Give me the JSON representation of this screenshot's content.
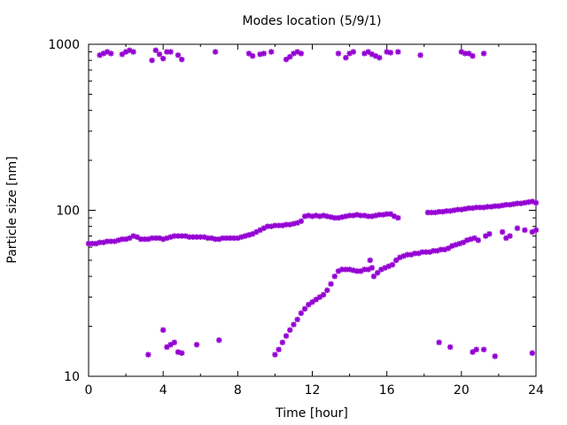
{
  "chart_data": {
    "type": "scatter",
    "title": "Modes location (5/9/1)",
    "xlabel": "Time [hour]",
    "ylabel": "Particle size [nm]",
    "xlim": [
      0,
      24
    ],
    "ylim": [
      10,
      1000
    ],
    "yscale": "log",
    "grid": false,
    "legend": "none",
    "marker": "asterisk",
    "color": "#9400d3",
    "xticks": [
      0,
      4,
      8,
      12,
      16,
      20,
      24
    ],
    "xtick_labels": [
      "0",
      "4",
      "8",
      "12",
      "16",
      "20",
      "24"
    ],
    "yticks": [
      10,
      100,
      1000
    ],
    "ytick_labels": [
      "10",
      "100",
      "1000"
    ],
    "series": [
      {
        "values": [
          [
            0.0,
            63
          ],
          [
            0.2,
            63
          ],
          [
            0.4,
            63
          ],
          [
            0.6,
            64
          ],
          [
            0.8,
            64
          ],
          [
            1.0,
            65
          ],
          [
            1.2,
            65
          ],
          [
            1.4,
            65
          ],
          [
            1.6,
            66
          ],
          [
            1.8,
            67
          ],
          [
            2.0,
            67
          ],
          [
            2.2,
            68
          ],
          [
            2.4,
            70
          ],
          [
            2.6,
            69
          ],
          [
            2.8,
            67
          ],
          [
            3.0,
            67
          ],
          [
            3.2,
            67
          ],
          [
            3.4,
            68
          ],
          [
            3.6,
            68
          ],
          [
            3.8,
            68
          ],
          [
            4.0,
            67
          ],
          [
            4.2,
            68
          ],
          [
            4.4,
            69
          ],
          [
            4.6,
            70
          ],
          [
            4.8,
            70
          ],
          [
            5.0,
            70
          ],
          [
            5.2,
            70
          ],
          [
            5.4,
            69
          ],
          [
            5.6,
            69
          ],
          [
            5.8,
            69
          ],
          [
            6.0,
            69
          ],
          [
            6.2,
            69
          ],
          [
            6.4,
            68
          ],
          [
            6.6,
            68
          ],
          [
            6.8,
            67
          ],
          [
            7.0,
            67
          ],
          [
            7.2,
            68
          ],
          [
            7.4,
            68
          ],
          [
            7.6,
            68
          ],
          [
            7.8,
            68
          ],
          [
            8.0,
            68
          ],
          [
            8.2,
            69
          ],
          [
            8.4,
            70
          ],
          [
            8.6,
            71
          ],
          [
            8.8,
            72
          ],
          [
            9.0,
            74
          ],
          [
            9.2,
            76
          ],
          [
            9.4,
            78
          ],
          [
            9.6,
            80
          ],
          [
            9.8,
            80
          ],
          [
            10.0,
            81
          ],
          [
            10.2,
            81
          ],
          [
            10.4,
            81
          ],
          [
            10.6,
            82
          ],
          [
            10.8,
            82
          ],
          [
            11.0,
            83
          ],
          [
            11.2,
            84
          ],
          [
            11.4,
            86
          ],
          [
            11.6,
            92
          ],
          [
            11.8,
            93
          ],
          [
            12.0,
            92
          ],
          [
            12.2,
            93
          ],
          [
            12.4,
            92
          ],
          [
            12.6,
            93
          ],
          [
            12.8,
            92
          ],
          [
            13.0,
            91
          ],
          [
            13.2,
            90
          ],
          [
            13.4,
            90
          ],
          [
            13.6,
            91
          ],
          [
            13.8,
            92
          ],
          [
            14.0,
            93
          ],
          [
            14.2,
            93
          ],
          [
            14.4,
            94
          ],
          [
            14.6,
            93
          ],
          [
            14.8,
            93
          ],
          [
            15.0,
            92
          ],
          [
            15.2,
            92
          ],
          [
            15.4,
            93
          ],
          [
            15.6,
            94
          ],
          [
            15.8,
            94
          ],
          [
            16.0,
            95
          ],
          [
            16.2,
            95
          ],
          [
            16.4,
            92
          ],
          [
            16.6,
            90
          ],
          [
            18.2,
            97
          ],
          [
            18.4,
            97
          ],
          [
            18.6,
            97
          ],
          [
            18.8,
            98
          ],
          [
            19.0,
            98
          ],
          [
            19.2,
            99
          ],
          [
            19.4,
            99
          ],
          [
            19.6,
            100
          ],
          [
            19.8,
            101
          ],
          [
            20.0,
            101
          ],
          [
            20.2,
            102
          ],
          [
            20.4,
            103
          ],
          [
            20.6,
            103
          ],
          [
            20.8,
            104
          ],
          [
            21.0,
            104
          ],
          [
            21.2,
            104
          ],
          [
            21.4,
            105
          ],
          [
            21.6,
            105
          ],
          [
            21.8,
            106
          ],
          [
            22.0,
            106
          ],
          [
            22.2,
            107
          ],
          [
            22.4,
            108
          ],
          [
            22.6,
            108
          ],
          [
            22.8,
            109
          ],
          [
            23.0,
            110
          ],
          [
            23.2,
            110
          ],
          [
            23.4,
            111
          ],
          [
            23.6,
            112
          ],
          [
            23.8,
            113
          ],
          [
            24.0,
            111
          ],
          [
            10.0,
            13.5
          ],
          [
            10.2,
            14.5
          ],
          [
            10.4,
            16
          ],
          [
            10.6,
            17.5
          ],
          [
            10.8,
            19
          ],
          [
            11.0,
            20.5
          ],
          [
            11.2,
            22
          ],
          [
            11.4,
            24
          ],
          [
            11.6,
            25.5
          ],
          [
            11.8,
            27
          ],
          [
            12.0,
            28
          ],
          [
            12.2,
            29
          ],
          [
            12.4,
            30
          ],
          [
            12.6,
            31
          ],
          [
            12.8,
            33
          ],
          [
            13.0,
            36
          ],
          [
            13.2,
            40
          ],
          [
            13.4,
            43
          ],
          [
            13.6,
            44
          ],
          [
            13.8,
            44
          ],
          [
            14.0,
            44
          ],
          [
            14.2,
            43.5
          ],
          [
            14.4,
            43
          ],
          [
            14.6,
            43
          ],
          [
            14.8,
            44
          ],
          [
            15.0,
            44
          ],
          [
            15.2,
            45
          ],
          [
            15.1,
            50
          ],
          [
            15.3,
            40
          ],
          [
            15.5,
            42
          ],
          [
            15.7,
            44
          ],
          [
            15.9,
            45
          ],
          [
            16.1,
            46
          ],
          [
            16.3,
            47
          ],
          [
            16.5,
            50
          ],
          [
            16.7,
            52
          ],
          [
            16.9,
            53
          ],
          [
            17.1,
            54
          ],
          [
            17.3,
            54
          ],
          [
            17.5,
            55
          ],
          [
            17.7,
            55
          ],
          [
            17.9,
            56
          ],
          [
            18.1,
            56
          ],
          [
            18.3,
            56
          ],
          [
            18.5,
            57
          ],
          [
            18.7,
            57
          ],
          [
            18.9,
            58
          ],
          [
            19.1,
            58
          ],
          [
            19.3,
            59
          ],
          [
            19.5,
            61
          ],
          [
            19.7,
            62
          ],
          [
            19.9,
            63
          ],
          [
            20.1,
            64
          ],
          [
            20.3,
            66
          ],
          [
            20.5,
            67
          ],
          [
            20.7,
            68
          ],
          [
            20.9,
            66
          ],
          [
            21.3,
            70
          ],
          [
            21.5,
            72
          ],
          [
            22.2,
            74
          ],
          [
            22.4,
            68
          ],
          [
            22.6,
            70
          ],
          [
            23.0,
            78
          ],
          [
            23.4,
            76
          ],
          [
            23.8,
            74
          ],
          [
            24.0,
            76
          ],
          [
            0.6,
            860
          ],
          [
            0.8,
            880
          ],
          [
            1.0,
            900
          ],
          [
            1.2,
            880
          ],
          [
            1.8,
            870
          ],
          [
            2.0,
            900
          ],
          [
            2.2,
            920
          ],
          [
            2.4,
            900
          ],
          [
            3.4,
            800
          ],
          [
            3.6,
            920
          ],
          [
            3.8,
            870
          ],
          [
            4.0,
            820
          ],
          [
            4.2,
            900
          ],
          [
            4.4,
            900
          ],
          [
            4.8,
            860
          ],
          [
            5.0,
            810
          ],
          [
            6.8,
            900
          ],
          [
            8.6,
            880
          ],
          [
            8.8,
            850
          ],
          [
            9.2,
            870
          ],
          [
            9.4,
            880
          ],
          [
            9.8,
            900
          ],
          [
            10.6,
            810
          ],
          [
            10.8,
            840
          ],
          [
            11.0,
            880
          ],
          [
            11.2,
            900
          ],
          [
            11.4,
            880
          ],
          [
            13.4,
            880
          ],
          [
            13.8,
            830
          ],
          [
            14.0,
            880
          ],
          [
            14.2,
            900
          ],
          [
            14.8,
            880
          ],
          [
            15.0,
            900
          ],
          [
            15.2,
            870
          ],
          [
            15.4,
            850
          ],
          [
            15.6,
            830
          ],
          [
            16.0,
            900
          ],
          [
            16.2,
            890
          ],
          [
            16.6,
            900
          ],
          [
            17.8,
            860
          ],
          [
            20.0,
            900
          ],
          [
            20.2,
            880
          ],
          [
            20.4,
            880
          ],
          [
            20.6,
            850
          ],
          [
            21.2,
            880
          ],
          [
            3.2,
            13.5
          ],
          [
            4.0,
            19
          ],
          [
            4.2,
            15
          ],
          [
            4.4,
            15.5
          ],
          [
            4.6,
            16
          ],
          [
            4.8,
            14
          ],
          [
            5.0,
            13.8
          ],
          [
            5.8,
            15.5
          ],
          [
            7.0,
            16.5
          ],
          [
            18.8,
            16
          ],
          [
            19.4,
            15
          ],
          [
            20.6,
            14
          ],
          [
            20.8,
            14.5
          ],
          [
            21.2,
            14.5
          ],
          [
            21.8,
            13.2
          ],
          [
            23.8,
            13.8
          ]
        ]
      }
    ]
  }
}
